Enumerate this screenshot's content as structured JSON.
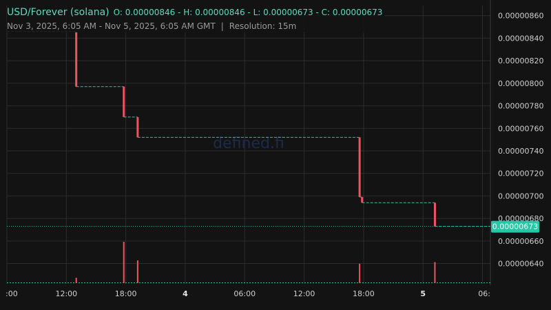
{
  "header": {
    "pair": "USD/Forever (solana)",
    "ohlc": "O: 0.00000846 - H: 0.00000846 - L: 0.00000673 - C: 0.00000673",
    "range": "Nov 3, 2025, 6:05 AM - Nov 5, 2025, 6:05 AM GMT",
    "separator": "|",
    "resolution": "Resolution: 15m"
  },
  "watermark": "defined.fi",
  "colors": {
    "background": "#131313",
    "grid": "#2c2c2c",
    "down": "#f0545e",
    "price_line": "#26c6a6",
    "text": "#9a9a9a",
    "last_price_bg": "#26c6a6"
  },
  "chart_data": {
    "type": "candlestick-step",
    "x_unit": "hours since Nov 3, 2025 00:00 GMT",
    "y_ticks": [
      "0.00000640",
      "0.00000660",
      "0.00000680",
      "0.00000700",
      "0.00000720",
      "0.00000740",
      "0.00000760",
      "0.00000780",
      "0.00000800",
      "0.00000820",
      "0.00000840",
      "0.00000860"
    ],
    "y_range": [
      6.22e-06,
      8.69e-06
    ],
    "x_ticks": [
      {
        "label": ":00",
        "bold": false
      },
      {
        "label": "12:00",
        "bold": false
      },
      {
        "label": "18:00",
        "bold": false
      },
      {
        "label": "4",
        "bold": true
      },
      {
        "label": "06:00",
        "bold": false
      },
      {
        "label": "12:00",
        "bold": false
      },
      {
        "label": "18:00",
        "bold": false
      },
      {
        "label": "5",
        "bold": true
      },
      {
        "label": "06:",
        "bold": false
      }
    ],
    "x_tick_hours": [
      6,
      12,
      18,
      24,
      30,
      36,
      42,
      48,
      54
    ],
    "x_range": [
      6,
      54.8
    ],
    "last_price": "0.00000673",
    "last_price_value": 6.73e-06,
    "steps": [
      {
        "x0": 6.0,
        "x1": 13.0,
        "y": 8.46e-06
      },
      {
        "x0": 13.0,
        "x1": 17.8,
        "y": 7.97e-06
      },
      {
        "x0": 17.8,
        "x1": 19.2,
        "y": 7.7e-06
      },
      {
        "x0": 19.2,
        "x1": 41.6,
        "y": 7.52e-06
      },
      {
        "x0": 41.6,
        "x1": 41.85,
        "y": 6.99e-06
      },
      {
        "x0": 41.85,
        "x1": 49.2,
        "y": 6.94e-06
      },
      {
        "x0": 49.2,
        "x1": 54.8,
        "y": 6.73e-06
      }
    ],
    "candles": [
      {
        "x": 13.0,
        "open": 8.46e-06,
        "close": 7.97e-06
      },
      {
        "x": 17.8,
        "open": 7.97e-06,
        "close": 7.7e-06
      },
      {
        "x": 19.2,
        "open": 7.7e-06,
        "close": 7.52e-06
      },
      {
        "x": 41.6,
        "open": 7.52e-06,
        "close": 6.99e-06
      },
      {
        "x": 41.85,
        "open": 6.99e-06,
        "close": 6.94e-06
      },
      {
        "x": 49.2,
        "open": 6.94e-06,
        "close": 6.73e-06
      }
    ],
    "volume": [
      {
        "x": 13.0,
        "value": 0.13
      },
      {
        "x": 17.8,
        "value": 1.0
      },
      {
        "x": 19.2,
        "value": 0.55
      },
      {
        "x": 41.6,
        "value": 0.47
      },
      {
        "x": 49.2,
        "value": 0.51
      }
    ]
  }
}
